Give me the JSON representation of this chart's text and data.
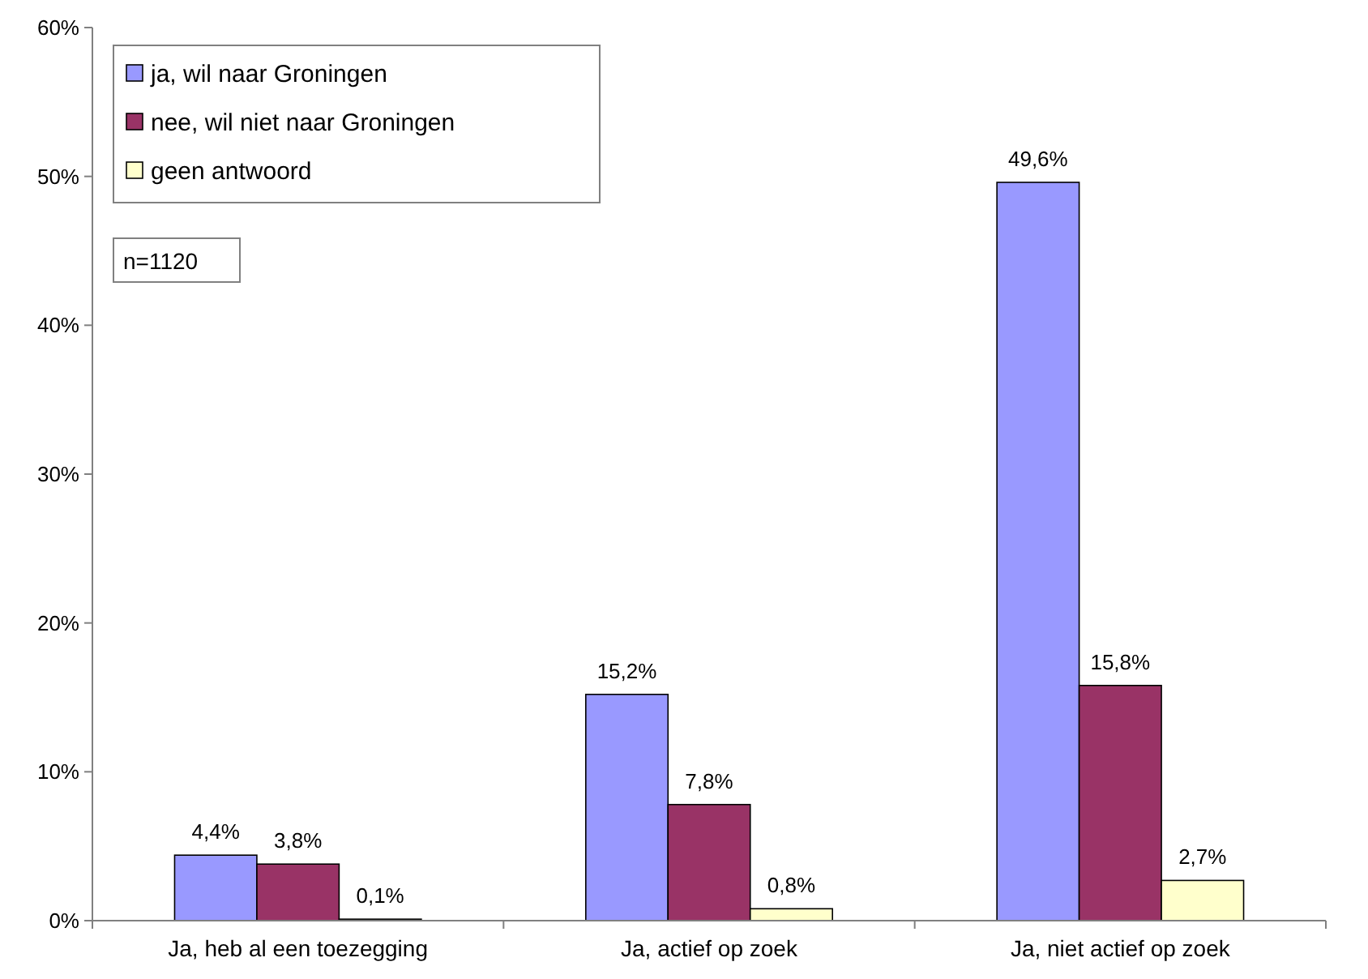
{
  "chart_data": {
    "type": "bar",
    "categories": [
      "Ja, heb al een toezegging",
      "Ja, actief op zoek",
      "Ja, niet actief op zoek"
    ],
    "series": [
      {
        "name": "ja, wil naar Groningen",
        "color": "#9999ff",
        "values": [
          4.4,
          15.2,
          49.6
        ],
        "value_labels": [
          "4,4%",
          "15,2%",
          "49,6%"
        ]
      },
      {
        "name": "nee, wil niet naar Groningen",
        "color": "#993366",
        "values": [
          3.8,
          7.8,
          15.8
        ],
        "value_labels": [
          "3,8%",
          "7,8%",
          "15,8%"
        ]
      },
      {
        "name": "geen antwoord",
        "color": "#ffffcc",
        "values": [
          0.1,
          0.8,
          2.7
        ],
        "value_labels": [
          "0,1%",
          "0,8%",
          "2,7%"
        ]
      }
    ],
    "ylim": [
      0,
      60
    ],
    "yticks": [
      {
        "value": 0,
        "label": "0%"
      },
      {
        "value": 10,
        "label": "10%"
      },
      {
        "value": 20,
        "label": "20%"
      },
      {
        "value": 30,
        "label": "30%"
      },
      {
        "value": 40,
        "label": "40%"
      },
      {
        "value": 50,
        "label": "50%"
      },
      {
        "value": 60,
        "label": "60%"
      }
    ],
    "legend": "top left",
    "annotations": [
      "n=1120"
    ]
  }
}
